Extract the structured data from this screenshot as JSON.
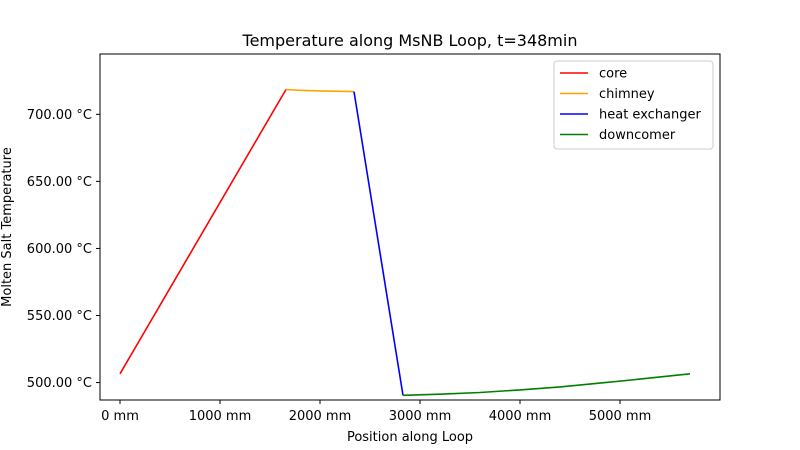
{
  "chart_data": {
    "type": "line",
    "title": "Temperature along MsNB Loop, t=348min",
    "xlabel": "Position along Loop",
    "ylabel": "Molten Salt Temperature",
    "xlim": [
      -200,
      6000
    ],
    "ylim": [
      487,
      745
    ],
    "x_ticks": [
      {
        "value": 0,
        "label": "0 mm"
      },
      {
        "value": 1000,
        "label": "1000 mm"
      },
      {
        "value": 2000,
        "label": "2000 mm"
      },
      {
        "value": 3000,
        "label": "3000 mm"
      },
      {
        "value": 4000,
        "label": "4000 mm"
      },
      {
        "value": 5000,
        "label": "5000 mm"
      }
    ],
    "y_ticks": [
      {
        "value": 500,
        "label": "500.00 °C"
      },
      {
        "value": 550,
        "label": "550.00 °C"
      },
      {
        "value": 600,
        "label": "600.00 °C"
      },
      {
        "value": 650,
        "label": "650.00 °C"
      },
      {
        "value": 700,
        "label": "700.00 °C"
      }
    ],
    "grid": false,
    "legend_position": "top-right",
    "series": [
      {
        "name": "core",
        "color": "#ff0000",
        "x": [
          0,
          1660
        ],
        "y": [
          506.5,
          718.5
        ]
      },
      {
        "name": "chimney",
        "color": "#ffa500",
        "x": [
          1660,
          1800,
          2000,
          2200,
          2340
        ],
        "y": [
          718.5,
          717.9,
          717.5,
          717.2,
          717.0
        ]
      },
      {
        "name": "heat exchanger",
        "color": "#0000ff",
        "x": [
          2340,
          2830
        ],
        "y": [
          717.0,
          490.5
        ]
      },
      {
        "name": "downcomer",
        "color": "#008000",
        "x": [
          2830,
          3200,
          3600,
          4000,
          4400,
          4800,
          5200,
          5700
        ],
        "y": [
          490.5,
          491.3,
          492.6,
          494.5,
          496.8,
          499.6,
          502.6,
          506.5
        ]
      }
    ]
  }
}
